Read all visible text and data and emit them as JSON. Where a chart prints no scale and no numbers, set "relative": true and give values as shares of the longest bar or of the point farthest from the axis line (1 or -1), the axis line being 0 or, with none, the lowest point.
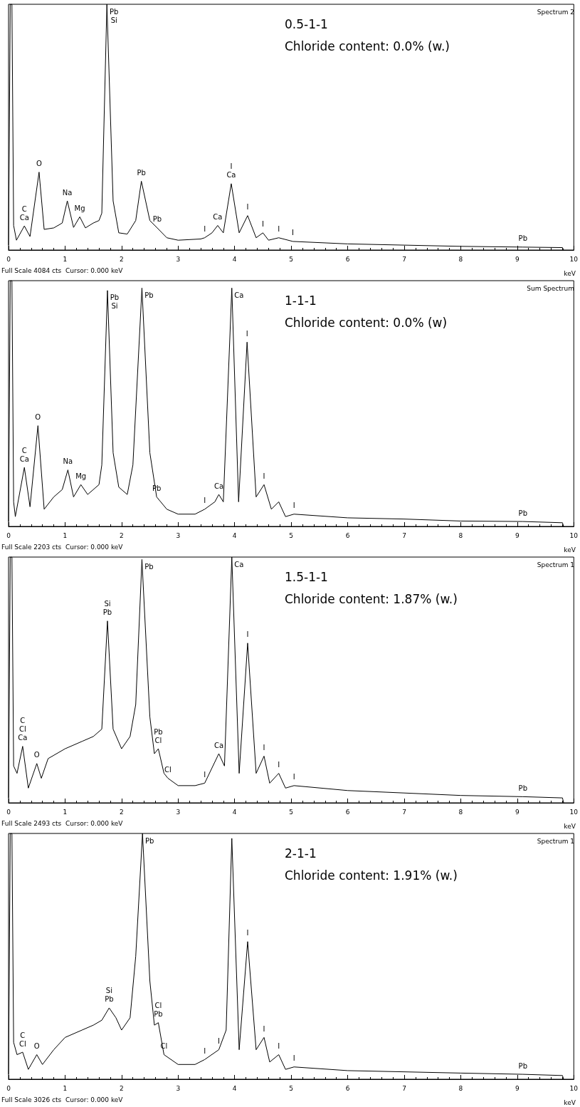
{
  "chart_data": [
    {
      "type": "line",
      "title": "0.5-1-1",
      "subtitle": "Chloride content: 0.0% (w.)",
      "xlabel": "keV",
      "relative": true,
      "xlim": [
        0,
        10
      ],
      "xticks": [
        0,
        1,
        2,
        3,
        4,
        5,
        6,
        7,
        8,
        9,
        10
      ],
      "marker": "none",
      "series": [
        {
          "color": "#000000",
          "x": [
            0.0,
            0.03,
            0.06,
            0.09,
            0.14,
            0.28,
            0.38,
            0.54,
            0.63,
            0.8,
            0.95,
            1.04,
            1.15,
            1.26,
            1.36,
            1.5,
            1.6,
            1.65,
            1.74,
            1.85,
            1.95,
            2.1,
            2.25,
            2.35,
            2.5,
            2.63,
            2.8,
            3.0,
            3.4,
            3.47,
            3.6,
            3.7,
            3.8,
            3.94,
            4.08,
            4.23,
            4.38,
            4.5,
            4.6,
            4.78,
            5.03,
            6.0,
            7.0,
            8.0,
            9.1,
            9.8,
            9.82
          ],
          "values": [
            0.02,
            1,
            1,
            0.1,
            0.04,
            0.098,
            0.055,
            0.317,
            0.084,
            0.09,
            0.11,
            0.2,
            0.092,
            0.135,
            0.09,
            0.11,
            0.12,
            0.15,
            1,
            0.2,
            0.07,
            0.065,
            0.12,
            0.28,
            0.12,
            0.09,
            0.05,
            0.04,
            0.045,
            0.05,
            0.07,
            0.1,
            0.07,
            0.27,
            0.07,
            0.14,
            0.05,
            0.07,
            0.04,
            0.05,
            0.035,
            0.025,
            0.02,
            0.015,
            0.012,
            0.01,
            0
          ]
        }
      ],
      "annotations": [
        "Spectrum 2",
        "Full Scale 4084 cts  Cursor: 0.000 keV",
        {
          "text": "Ca",
          "x": 0.28,
          "y": 0.098
        },
        {
          "text": "C",
          "x": 0.28,
          "y": 0.098
        },
        {
          "text": "O",
          "x": 0.54,
          "y": 0.317
        },
        {
          "text": "Na",
          "x": 1.04,
          "y": 0.2
        },
        {
          "text": "Mg",
          "x": 1.26,
          "y": 0.135
        },
        {
          "text": "Pb",
          "x": 1.74,
          "y": 1
        },
        {
          "text": "Si",
          "x": 1.74,
          "y": 1
        },
        {
          "text": "Pb",
          "x": 2.35,
          "y": 0.28
        },
        {
          "text": "Pb",
          "x": 2.63,
          "y": 0.09
        },
        {
          "text": "Ca",
          "x": 3.7,
          "y": 0.1
        },
        {
          "text": "Ca",
          "x": 3.94,
          "y": 0.27
        },
        {
          "text": "I",
          "x": 3.94,
          "y": 0.27
        },
        {
          "text": "I",
          "x": 4.23,
          "y": 0.14
        },
        {
          "text": "I",
          "x": 3.47,
          "y": 0.05
        },
        {
          "text": "I",
          "x": 4.5,
          "y": 0.07
        },
        {
          "text": "I",
          "x": 4.78,
          "y": 0.05
        },
        {
          "text": "I",
          "x": 5.03,
          "y": 0.035
        },
        {
          "text": "Pb",
          "x": 9.1,
          "y": 0.012
        }
      ]
    },
    {
      "type": "line",
      "title": "1-1-1",
      "subtitle": "Chloride content: 0.0% (w)",
      "xlabel": "keV",
      "relative": true,
      "xlim": [
        0,
        10
      ],
      "xticks": [
        0,
        1,
        2,
        3,
        4,
        5,
        6,
        7,
        8,
        9,
        10
      ],
      "marker": "none",
      "series": [
        {
          "color": "#000000",
          "x": [
            0.0,
            0.03,
            0.06,
            0.09,
            0.12,
            0.28,
            0.38,
            0.52,
            0.63,
            0.8,
            0.95,
            1.05,
            1.15,
            1.28,
            1.4,
            1.6,
            1.65,
            1.75,
            1.85,
            1.95,
            2.1,
            2.2,
            2.36,
            2.5,
            2.62,
            2.8,
            3.0,
            3.3,
            3.47,
            3.65,
            3.72,
            3.8,
            3.95,
            4.07,
            4.22,
            4.38,
            4.52,
            4.65,
            4.78,
            4.9,
            5.05,
            6.0,
            7.0,
            8.0,
            9.1,
            9.8,
            9.82
          ],
          "values": [
            0.02,
            1,
            1,
            0.1,
            0.04,
            0.24,
            0.08,
            0.41,
            0.07,
            0.12,
            0.15,
            0.23,
            0.12,
            0.17,
            0.13,
            0.17,
            0.25,
            0.96,
            0.3,
            0.16,
            0.13,
            0.25,
            0.97,
            0.3,
            0.12,
            0.07,
            0.05,
            0.05,
            0.07,
            0.1,
            0.13,
            0.1,
            0.97,
            0.1,
            0.75,
            0.12,
            0.17,
            0.07,
            0.1,
            0.04,
            0.05,
            0.035,
            0.03,
            0.022,
            0.02,
            0.015,
            0
          ]
        }
      ],
      "annotations": [
        "Sum Spectrum",
        "Full Scale 2203 cts  Cursor: 0.000 keV",
        {
          "text": "Ca",
          "x": 0.28,
          "y": 0.24
        },
        {
          "text": "C",
          "x": 0.28,
          "y": 0.24
        },
        {
          "text": "O",
          "x": 0.52,
          "y": 0.41
        },
        {
          "text": "Na",
          "x": 1.05,
          "y": 0.23
        },
        {
          "text": "Mg",
          "x": 1.28,
          "y": 0.17
        },
        {
          "text": "Pb",
          "x": 1.75,
          "y": 0.96
        },
        {
          "text": "Si",
          "x": 1.75,
          "y": 0.96
        },
        {
          "text": "Pb",
          "x": 2.36,
          "y": 0.97
        },
        {
          "text": "Ca",
          "x": 3.95,
          "y": 0.97
        },
        {
          "text": "I",
          "x": 4.22,
          "y": 0.75
        },
        {
          "text": "Pb",
          "x": 2.62,
          "y": 0.12
        },
        {
          "text": "Ca",
          "x": 3.72,
          "y": 0.13
        },
        {
          "text": "I",
          "x": 3.47,
          "y": 0.07
        },
        {
          "text": "I",
          "x": 4.52,
          "y": 0.17
        },
        {
          "text": "I",
          "x": 5.05,
          "y": 0.05
        },
        {
          "text": "Pb",
          "x": 9.1,
          "y": 0.02
        }
      ]
    },
    {
      "type": "line",
      "title": "1.5-1-1",
      "subtitle": "Chloride content: 1.87% (w.)",
      "xlabel": "keV",
      "relative": true,
      "xlim": [
        0,
        10
      ],
      "xticks": [
        0,
        1,
        2,
        3,
        4,
        5,
        6,
        7,
        8,
        9,
        10
      ],
      "marker": "none",
      "series": [
        {
          "color": "#000000",
          "x": [
            0.0,
            0.03,
            0.06,
            0.09,
            0.15,
            0.25,
            0.35,
            0.5,
            0.58,
            0.7,
            1.0,
            1.3,
            1.5,
            1.65,
            1.75,
            1.85,
            2.0,
            2.15,
            2.25,
            2.36,
            2.5,
            2.58,
            2.65,
            2.75,
            2.82,
            3.0,
            3.3,
            3.47,
            3.72,
            3.82,
            3.95,
            4.08,
            4.23,
            4.38,
            4.52,
            4.62,
            4.78,
            4.9,
            5.05,
            6.0,
            7.0,
            8.0,
            9.1,
            9.8,
            9.82
          ],
          "values": [
            0.02,
            1,
            1,
            0.15,
            0.12,
            0.23,
            0.06,
            0.16,
            0.1,
            0.18,
            0.22,
            0.25,
            0.27,
            0.3,
            0.74,
            0.3,
            0.22,
            0.27,
            0.4,
            0.99,
            0.35,
            0.2,
            0.22,
            0.12,
            0.1,
            0.07,
            0.07,
            0.08,
            0.2,
            0.15,
            1,
            0.12,
            0.65,
            0.12,
            0.19,
            0.08,
            0.12,
            0.06,
            0.07,
            0.05,
            0.04,
            0.03,
            0.025,
            0.02,
            0
          ]
        }
      ],
      "annotations": [
        "Spectrum 1",
        "Full Scale 2493 cts  Cursor: 0.000 keV",
        {
          "text": "Ca",
          "x": 0.25,
          "y": 0.23
        },
        {
          "text": "Cl",
          "x": 0.25,
          "y": 0.23
        },
        {
          "text": "C",
          "x": 0.25,
          "y": 0.23
        },
        {
          "text": "O",
          "x": 0.5,
          "y": 0.16
        },
        {
          "text": "Pb",
          "x": 1.75,
          "y": 0.74
        },
        {
          "text": "Si",
          "x": 1.75,
          "y": 0.74
        },
        {
          "text": "Pb",
          "x": 2.36,
          "y": 0.99
        },
        {
          "text": "Cl",
          "x": 2.65,
          "y": 0.22
        },
        {
          "text": "Pb",
          "x": 2.65,
          "y": 0.22
        },
        {
          "text": "Cl",
          "x": 2.82,
          "y": 0.1
        },
        {
          "text": "Ca",
          "x": 3.72,
          "y": 0.2
        },
        {
          "text": "Ca",
          "x": 3.95,
          "y": 1
        },
        {
          "text": "I",
          "x": 4.23,
          "y": 0.65
        },
        {
          "text": "I",
          "x": 3.47,
          "y": 0.08
        },
        {
          "text": "I",
          "x": 4.52,
          "y": 0.19
        },
        {
          "text": "I",
          "x": 4.78,
          "y": 0.12
        },
        {
          "text": "I",
          "x": 5.05,
          "y": 0.07
        },
        {
          "text": "Pb",
          "x": 9.1,
          "y": 0.025
        }
      ]
    },
    {
      "type": "line",
      "title": "2-1-1",
      "subtitle": "Chloride content: 1.91% (w.)",
      "xlabel": "keV",
      "relative": true,
      "xlim": [
        0,
        10
      ],
      "xticks": [
        0,
        1,
        2,
        3,
        4,
        5,
        6,
        7,
        8,
        9,
        10
      ],
      "marker": "none",
      "series": [
        {
          "color": "#000000",
          "x": [
            0.0,
            0.03,
            0.06,
            0.09,
            0.15,
            0.25,
            0.35,
            0.5,
            0.6,
            0.8,
            1.0,
            1.3,
            1.5,
            1.65,
            1.78,
            1.9,
            2.0,
            2.15,
            2.25,
            2.37,
            2.5,
            2.58,
            2.65,
            2.75,
            3.0,
            3.3,
            3.47,
            3.72,
            3.85,
            3.95,
            4.08,
            4.23,
            4.38,
            4.52,
            4.62,
            4.78,
            4.9,
            5.05,
            6.0,
            7.0,
            8.0,
            9.1,
            9.8,
            9.82
          ],
          "values": [
            0.02,
            1,
            1,
            0.15,
            0.1,
            0.11,
            0.04,
            0.1,
            0.06,
            0.12,
            0.17,
            0.2,
            0.22,
            0.24,
            0.29,
            0.25,
            0.2,
            0.25,
            0.5,
            1,
            0.4,
            0.22,
            0.23,
            0.1,
            0.06,
            0.06,
            0.08,
            0.12,
            0.2,
            0.98,
            0.12,
            0.56,
            0.12,
            0.17,
            0.07,
            0.1,
            0.04,
            0.05,
            0.035,
            0.03,
            0.025,
            0.02,
            0.015,
            0
          ]
        }
      ],
      "annotations": [
        "Spectrum 1",
        "Full Scale 3026 cts  Cursor: 0.000 keV",
        {
          "text": "Cl",
          "x": 0.25,
          "y": 0.11
        },
        {
          "text": "C",
          "x": 0.25,
          "y": 0.11
        },
        {
          "text": "O",
          "x": 0.5,
          "y": 0.1
        },
        {
          "text": "Pb",
          "x": 1.78,
          "y": 0.29
        },
        {
          "text": "Si",
          "x": 1.78,
          "y": 0.29
        },
        {
          "text": "Pb",
          "x": 2.37,
          "y": 1
        },
        {
          "text": "Pb",
          "x": 2.65,
          "y": 0.23
        },
        {
          "text": "Cl",
          "x": 2.65,
          "y": 0.23
        },
        {
          "text": "Cl",
          "x": 2.75,
          "y": 0.1
        },
        {
          "text": "I",
          "x": 3.47,
          "y": 0.08
        },
        {
          "text": "I",
          "x": 3.72,
          "y": 0.12
        },
        {
          "text": "I",
          "x": 4.23,
          "y": 0.56
        },
        {
          "text": "I",
          "x": 4.52,
          "y": 0.17
        },
        {
          "text": "I",
          "x": 4.78,
          "y": 0.1
        },
        {
          "text": "I",
          "x": 5.05,
          "y": 0.05
        },
        {
          "text": "Pb",
          "x": 9.1,
          "y": 0.02
        }
      ]
    }
  ]
}
